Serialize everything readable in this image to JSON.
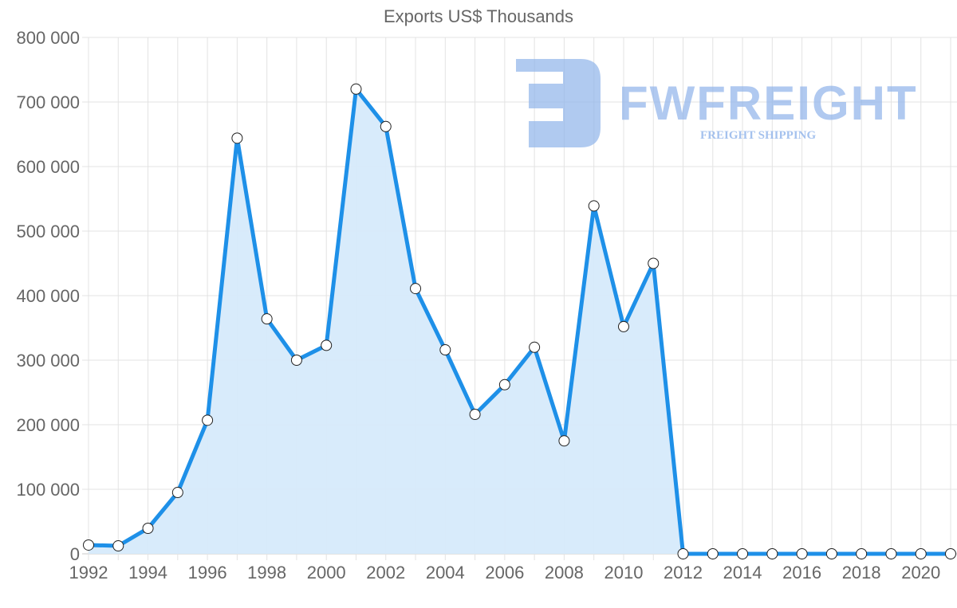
{
  "chart_data": {
    "type": "area",
    "title": "Exports US$ Thousands",
    "xlabel": "",
    "ylabel": "",
    "ylim": [
      0,
      800000
    ],
    "yticks": [
      "0",
      "100 000",
      "200 000",
      "300 000",
      "400 000",
      "500 000",
      "600 000",
      "700 000",
      "800 000"
    ],
    "xticks": [
      "1992",
      "1994",
      "1996",
      "1998",
      "2000",
      "2002",
      "2004",
      "2006",
      "2008",
      "2010",
      "2012",
      "2014",
      "2016",
      "2018",
      "2020"
    ],
    "grid": true,
    "legend": null,
    "x": [
      1992,
      1993,
      1994,
      1995,
      1996,
      1997,
      1998,
      1999,
      2000,
      2001,
      2002,
      2003,
      2004,
      2005,
      2006,
      2007,
      2008,
      2009,
      2010,
      2011,
      2012,
      2013,
      2014,
      2015,
      2016,
      2017,
      2018,
      2019,
      2020,
      2021
    ],
    "series": [
      {
        "name": "Exports US$ Thousands",
        "color": "#1e90e8",
        "fill": "#d6eafb",
        "values": [
          13600,
          12300,
          39500,
          95000,
          207000,
          644000,
          364000,
          300000,
          323000,
          720000,
          662000,
          411000,
          316000,
          216000,
          262000,
          320000,
          175000,
          539000,
          352000,
          450000,
          0,
          0,
          0,
          0,
          0,
          0,
          0,
          0,
          0,
          0
        ]
      }
    ]
  },
  "watermark": {
    "brand": "FWFREIGHT",
    "tagline": "FREIGHT SHIPPING"
  }
}
